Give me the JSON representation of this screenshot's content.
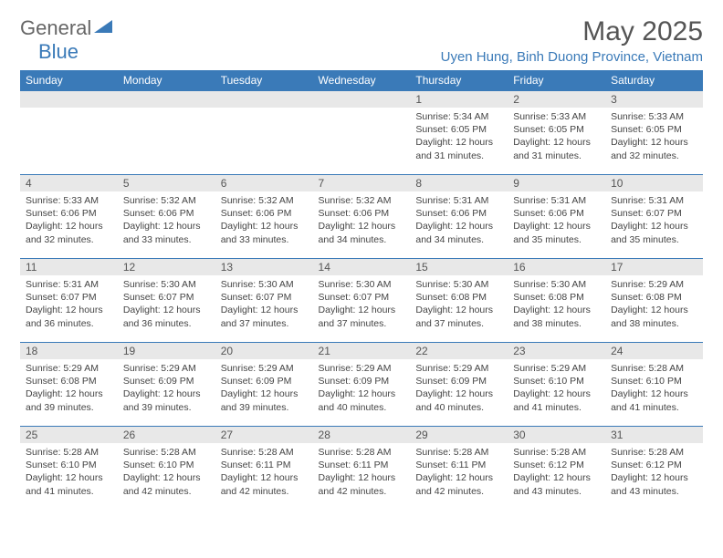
{
  "logo": {
    "text1": "General",
    "text2": "Blue"
  },
  "title": "May 2025",
  "location": "Uyen Hung, Binh Duong Province, Vietnam",
  "colors": {
    "header_bg": "#3a7ab8",
    "header_text": "#ffffff",
    "daynum_bg": "#e8e8e8",
    "text": "#444444",
    "accent": "#3a7ab8",
    "logo_gray": "#666666"
  },
  "day_headers": [
    "Sunday",
    "Monday",
    "Tuesday",
    "Wednesday",
    "Thursday",
    "Friday",
    "Saturday"
  ],
  "weeks": [
    [
      null,
      null,
      null,
      null,
      {
        "n": "1",
        "sr": "5:34 AM",
        "ss": "6:05 PM",
        "dl": "12 hours and 31 minutes."
      },
      {
        "n": "2",
        "sr": "5:33 AM",
        "ss": "6:05 PM",
        "dl": "12 hours and 31 minutes."
      },
      {
        "n": "3",
        "sr": "5:33 AM",
        "ss": "6:05 PM",
        "dl": "12 hours and 32 minutes."
      }
    ],
    [
      {
        "n": "4",
        "sr": "5:33 AM",
        "ss": "6:06 PM",
        "dl": "12 hours and 32 minutes."
      },
      {
        "n": "5",
        "sr": "5:32 AM",
        "ss": "6:06 PM",
        "dl": "12 hours and 33 minutes."
      },
      {
        "n": "6",
        "sr": "5:32 AM",
        "ss": "6:06 PM",
        "dl": "12 hours and 33 minutes."
      },
      {
        "n": "7",
        "sr": "5:32 AM",
        "ss": "6:06 PM",
        "dl": "12 hours and 34 minutes."
      },
      {
        "n": "8",
        "sr": "5:31 AM",
        "ss": "6:06 PM",
        "dl": "12 hours and 34 minutes."
      },
      {
        "n": "9",
        "sr": "5:31 AM",
        "ss": "6:06 PM",
        "dl": "12 hours and 35 minutes."
      },
      {
        "n": "10",
        "sr": "5:31 AM",
        "ss": "6:07 PM",
        "dl": "12 hours and 35 minutes."
      }
    ],
    [
      {
        "n": "11",
        "sr": "5:31 AM",
        "ss": "6:07 PM",
        "dl": "12 hours and 36 minutes."
      },
      {
        "n": "12",
        "sr": "5:30 AM",
        "ss": "6:07 PM",
        "dl": "12 hours and 36 minutes."
      },
      {
        "n": "13",
        "sr": "5:30 AM",
        "ss": "6:07 PM",
        "dl": "12 hours and 37 minutes."
      },
      {
        "n": "14",
        "sr": "5:30 AM",
        "ss": "6:07 PM",
        "dl": "12 hours and 37 minutes."
      },
      {
        "n": "15",
        "sr": "5:30 AM",
        "ss": "6:08 PM",
        "dl": "12 hours and 37 minutes."
      },
      {
        "n": "16",
        "sr": "5:30 AM",
        "ss": "6:08 PM",
        "dl": "12 hours and 38 minutes."
      },
      {
        "n": "17",
        "sr": "5:29 AM",
        "ss": "6:08 PM",
        "dl": "12 hours and 38 minutes."
      }
    ],
    [
      {
        "n": "18",
        "sr": "5:29 AM",
        "ss": "6:08 PM",
        "dl": "12 hours and 39 minutes."
      },
      {
        "n": "19",
        "sr": "5:29 AM",
        "ss": "6:09 PM",
        "dl": "12 hours and 39 minutes."
      },
      {
        "n": "20",
        "sr": "5:29 AM",
        "ss": "6:09 PM",
        "dl": "12 hours and 39 minutes."
      },
      {
        "n": "21",
        "sr": "5:29 AM",
        "ss": "6:09 PM",
        "dl": "12 hours and 40 minutes."
      },
      {
        "n": "22",
        "sr": "5:29 AM",
        "ss": "6:09 PM",
        "dl": "12 hours and 40 minutes."
      },
      {
        "n": "23",
        "sr": "5:29 AM",
        "ss": "6:10 PM",
        "dl": "12 hours and 41 minutes."
      },
      {
        "n": "24",
        "sr": "5:28 AM",
        "ss": "6:10 PM",
        "dl": "12 hours and 41 minutes."
      }
    ],
    [
      {
        "n": "25",
        "sr": "5:28 AM",
        "ss": "6:10 PM",
        "dl": "12 hours and 41 minutes."
      },
      {
        "n": "26",
        "sr": "5:28 AM",
        "ss": "6:10 PM",
        "dl": "12 hours and 42 minutes."
      },
      {
        "n": "27",
        "sr": "5:28 AM",
        "ss": "6:11 PM",
        "dl": "12 hours and 42 minutes."
      },
      {
        "n": "28",
        "sr": "5:28 AM",
        "ss": "6:11 PM",
        "dl": "12 hours and 42 minutes."
      },
      {
        "n": "29",
        "sr": "5:28 AM",
        "ss": "6:11 PM",
        "dl": "12 hours and 42 minutes."
      },
      {
        "n": "30",
        "sr": "5:28 AM",
        "ss": "6:12 PM",
        "dl": "12 hours and 43 minutes."
      },
      {
        "n": "31",
        "sr": "5:28 AM",
        "ss": "6:12 PM",
        "dl": "12 hours and 43 minutes."
      }
    ]
  ],
  "labels": {
    "sunrise": "Sunrise: ",
    "sunset": "Sunset: ",
    "daylight": "Daylight: "
  }
}
